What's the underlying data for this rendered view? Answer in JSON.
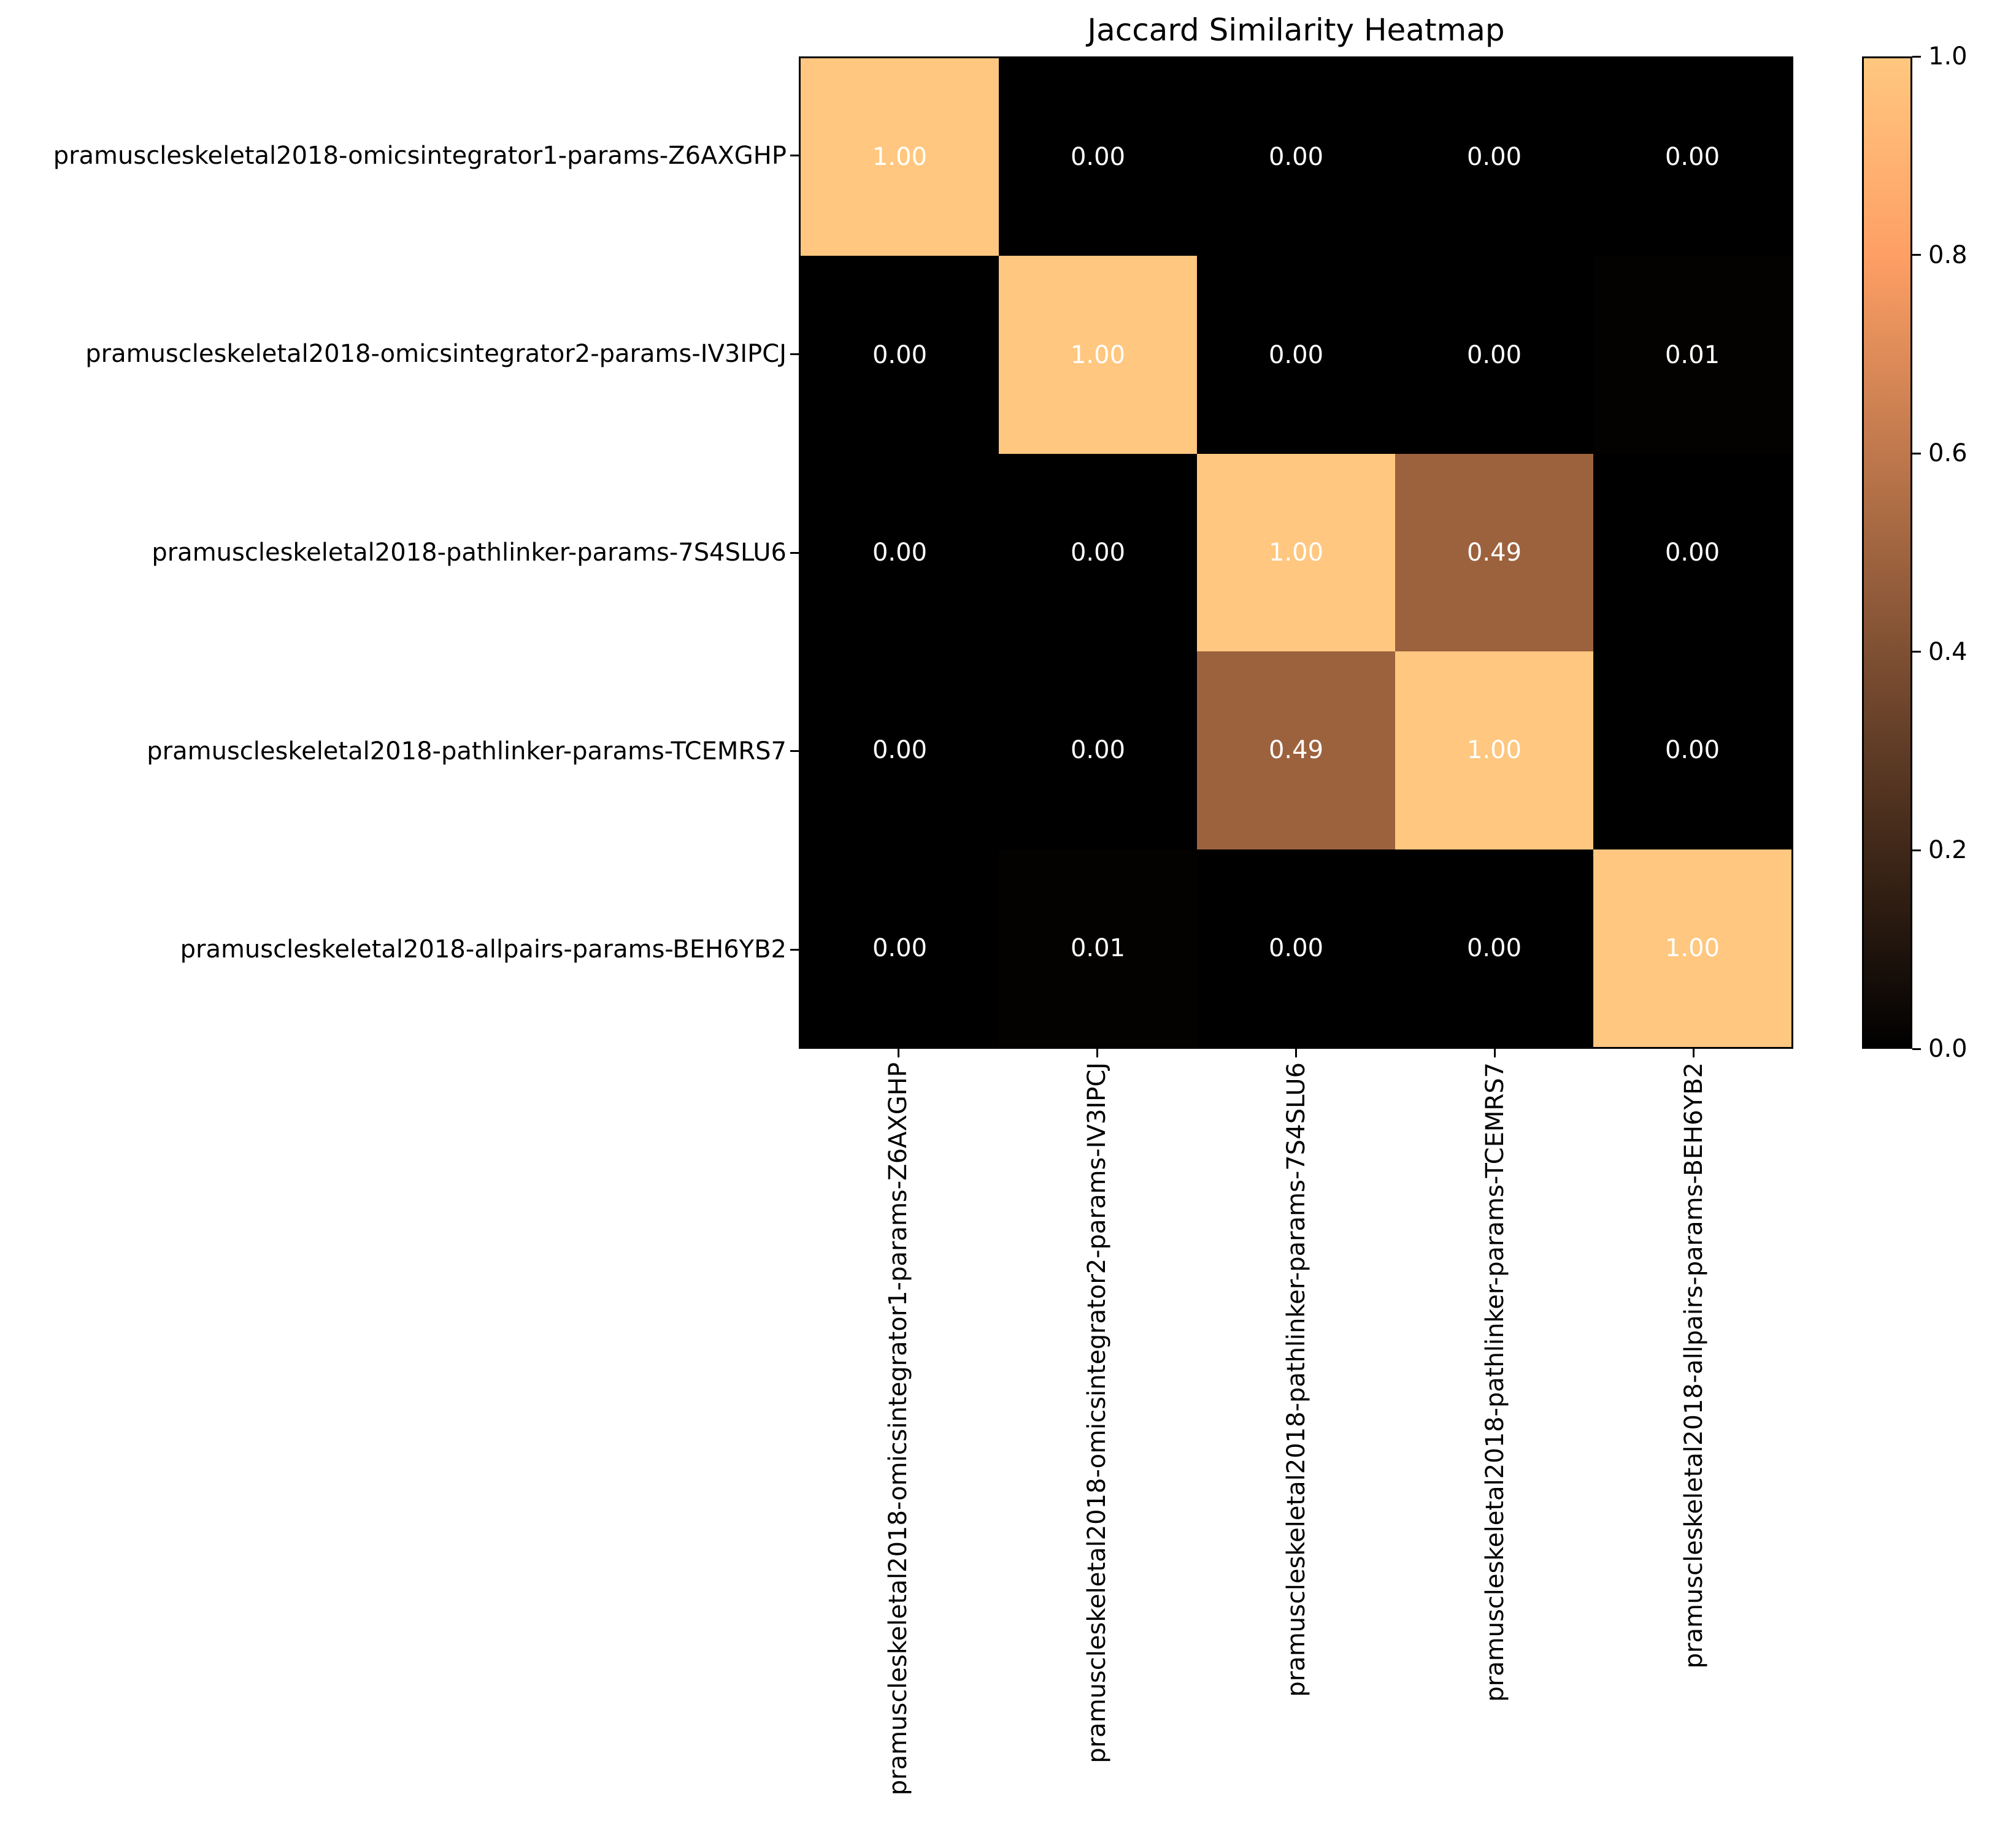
{
  "chart_data": {
    "type": "heatmap",
    "title": "Jaccard Similarity Heatmap",
    "row_labels": [
      "pramuscleskeletal2018-omicsintegrator1-params-Z6AXGHP",
      "pramuscleskeletal2018-omicsintegrator2-params-IV3IPCJ",
      "pramuscleskeletal2018-pathlinker-params-7S4SLU6",
      "pramuscleskeletal2018-pathlinker-params-TCEMRS7",
      "pramuscleskeletal2018-allpairs-params-BEH6YB2"
    ],
    "col_labels": [
      "pramuscleskeletal2018-omicsintegrator1-params-Z6AXGHP",
      "pramuscleskeletal2018-omicsintegrator2-params-IV3IPCJ",
      "pramuscleskeletal2018-pathlinker-params-7S4SLU6",
      "pramuscleskeletal2018-pathlinker-params-TCEMRS7",
      "pramuscleskeletal2018-allpairs-params-BEH6YB2"
    ],
    "matrix": [
      [
        1.0,
        0.0,
        0.0,
        0.0,
        0.0
      ],
      [
        0.0,
        1.0,
        0.0,
        0.0,
        0.01
      ],
      [
        0.0,
        0.0,
        1.0,
        0.49,
        0.0
      ],
      [
        0.0,
        0.0,
        0.49,
        1.0,
        0.0
      ],
      [
        0.0,
        0.01,
        0.0,
        0.0,
        1.0
      ]
    ],
    "value_decimals": 2,
    "annotation_text_color": "#ffffff",
    "colormap": "copper",
    "vmin": 0.0,
    "vmax": 1.0,
    "grid": false,
    "legend": false,
    "colorbar": {
      "position": "right",
      "tick_labels": [
        "0.0",
        "0.2",
        "0.4",
        "0.6",
        "0.8",
        "1.0"
      ],
      "tick_values": [
        0.0,
        0.2,
        0.4,
        0.6,
        0.8,
        1.0
      ]
    },
    "key_colors": {
      "value_1_00": "#ffc77f",
      "value_0_49": "#9c623e",
      "value_0_00": "#000000"
    }
  }
}
